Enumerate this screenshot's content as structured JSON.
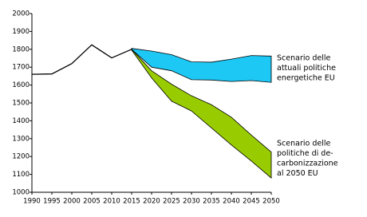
{
  "chart_data": {
    "type": "line",
    "x": [
      1990,
      1995,
      2000,
      2005,
      2010,
      2015,
      2020,
      2025,
      2030,
      2035,
      2040,
      2045,
      2050
    ],
    "xlim": [
      1990,
      2050
    ],
    "xticks": [
      1990,
      1995,
      2000,
      2005,
      2010,
      2015,
      2020,
      2025,
      2030,
      2035,
      2040,
      2045,
      2050
    ],
    "ylim": [
      1000,
      2000
    ],
    "yticks": [
      1000,
      1100,
      1200,
      1300,
      1400,
      1500,
      1600,
      1700,
      1800,
      1900,
      2000
    ],
    "grid": false,
    "series": [
      {
        "color": "#000000",
        "values": [
          1660,
          1662,
          1720,
          1825,
          1752,
          1800,
          null,
          null,
          null,
          null,
          null,
          null,
          null
        ]
      },
      {
        "name": [
          "Scenario delle",
          "attuali politiche",
          "energetiche EU"
        ],
        "color": "#1ec8f5",
        "upper": [
          null,
          null,
          null,
          null,
          null,
          1805,
          1790,
          1770,
          1730,
          1728,
          1745,
          1765,
          1762
        ],
        "lower": [
          null,
          null,
          null,
          null,
          null,
          1800,
          1700,
          1680,
          1630,
          1628,
          1620,
          1625,
          1615
        ]
      },
      {
        "name": [
          "Scenario delle",
          "politiche di de-",
          "carbonizzazione",
          "al 2050 EU"
        ],
        "color": "#99cc00",
        "upper": [
          null,
          null,
          null,
          null,
          null,
          1800,
          1680,
          1605,
          1540,
          1490,
          1420,
          1320,
          1225
        ],
        "lower": [
          null,
          null,
          null,
          null,
          null,
          1795,
          1640,
          1510,
          1455,
          1360,
          1265,
          1175,
          1080
        ]
      }
    ]
  }
}
